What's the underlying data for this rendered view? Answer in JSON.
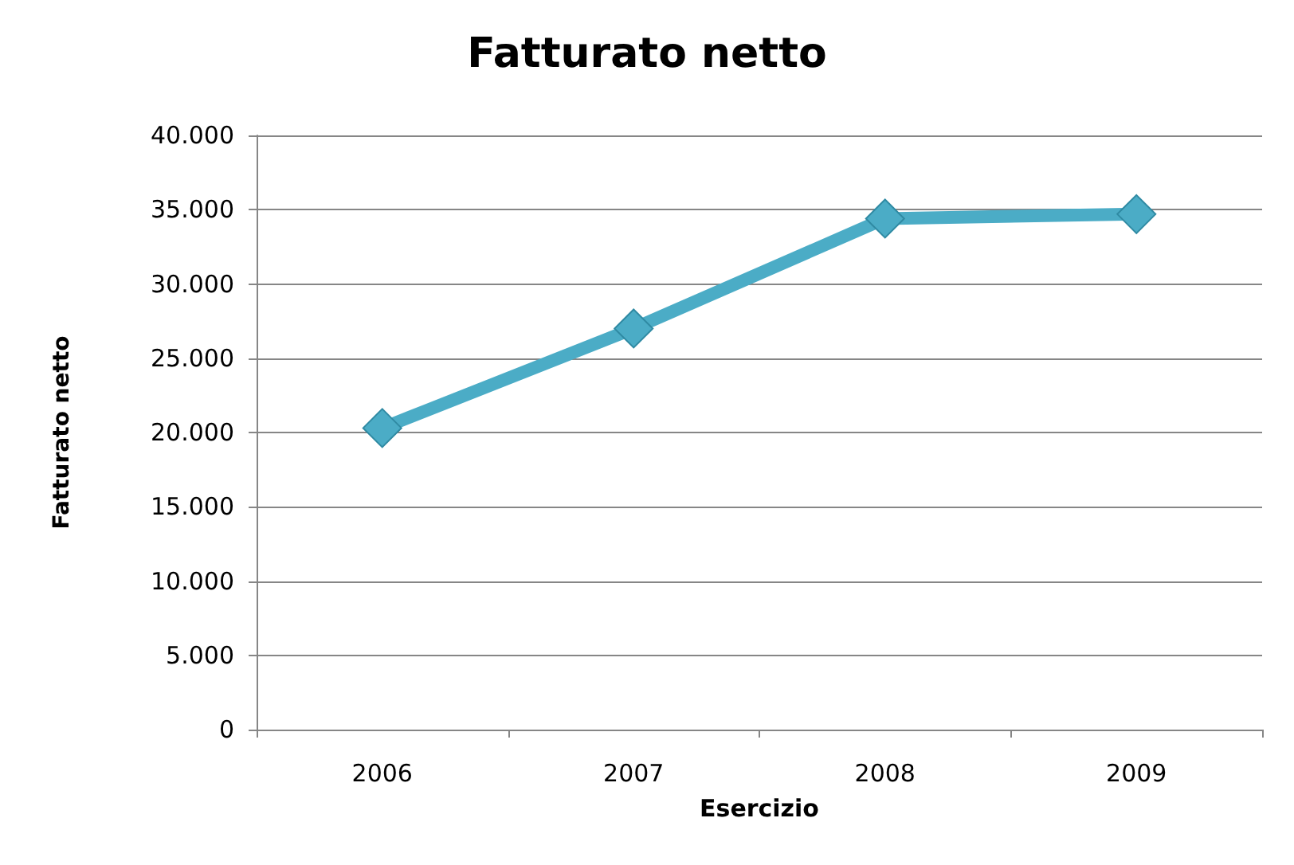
{
  "chart_data": {
    "type": "line",
    "title": "Fatturato netto",
    "xlabel": "Esercizio",
    "ylabel": "Fatturato netto",
    "categories": [
      "2006",
      "2007",
      "2008",
      "2009"
    ],
    "series": [
      {
        "color": "#4bacc6",
        "values": [
          20300,
          27000,
          34400,
          34700
        ]
      }
    ],
    "ylim": [
      0,
      40000
    ],
    "yticks": [
      0,
      {
        "value": 5000,
        "label": "5.000"
      },
      {
        "value": 10000,
        "label": "10.000"
      },
      {
        "value": 15000,
        "label": "15.000"
      },
      {
        "value": 20000,
        "label": "20.000"
      },
      {
        "value": 25000,
        "label": "25.000"
      },
      {
        "value": 30000,
        "label": "30.000"
      },
      {
        "value": 35000,
        "label": "35.000"
      },
      {
        "value": 40000,
        "label": "40.000"
      }
    ],
    "grid": "y",
    "marker": "diamond",
    "line_style": "solid"
  }
}
